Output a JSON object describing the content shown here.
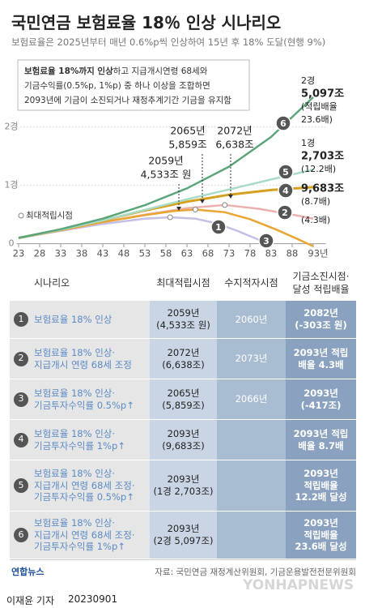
{
  "title": "국민연금 보험료율 18％ 인상 시나리오",
  "subtitle": "보험료율은 2025년부터 매년 0.6%p씩 인상하여 15년 후 18% 도달(현행 9%)",
  "chart_data": {
    "type": "line",
    "note": [
      [
        "보험료율 18%까지 인상",
        "하고 지급개시연령 68세와"
      ],
      [
        "기금수익률(0.5%p, 1%p) 중 하나 이상을 조합하면"
      ],
      [
        "2093년에 기금이 소진되거나 재정추계기간 기금을 유지함"
      ]
    ],
    "xlim": [
      2021,
      2096
    ],
    "xticks": [
      {
        "value": 2023,
        "label": "23"
      },
      {
        "value": 2028,
        "label": "28"
      },
      {
        "value": 2033,
        "label": "33"
      },
      {
        "value": 2038,
        "label": "38"
      },
      {
        "value": 2043,
        "label": "43"
      },
      {
        "value": 2048,
        "label": "48"
      },
      {
        "value": 2053,
        "label": "53"
      },
      {
        "value": 2058,
        "label": "58"
      },
      {
        "value": 2063,
        "label": "63"
      },
      {
        "value": 2068,
        "label": "68"
      },
      {
        "value": 2073,
        "label": "73"
      },
      {
        "value": 2078,
        "label": "78"
      },
      {
        "value": 2083,
        "label": "83"
      },
      {
        "value": 2088,
        "label": "88"
      },
      {
        "value": 2093,
        "label": "93년"
      }
    ],
    "ylim": [
      -600,
      28000
    ],
    "yticks": [
      0,
      {
        "value": 10000,
        "label": "1경"
      },
      {
        "value": 20000,
        "label": "2경"
      }
    ],
    "grid": true,
    "legend": "최대적립시점",
    "series": [
      {
        "name": "1",
        "color": "#c6bfe4",
        "peak_marker": true,
        "x": [
          2023,
          2033,
          2043,
          2053,
          2059,
          2065,
          2070,
          2075,
          2080,
          2082
        ],
        "values": [
          1000,
          2200,
          3400,
          4300,
          4533,
          4300,
          3500,
          2200,
          700,
          -303
        ]
      },
      {
        "name": "2",
        "color": "#ebb1ae",
        "peak_marker": true,
        "x": [
          2023,
          2033,
          2043,
          2053,
          2063,
          2072,
          2080,
          2088,
          2093
        ],
        "values": [
          1000,
          2300,
          3700,
          5000,
          6100,
          6638,
          6000,
          5000,
          4300
        ]
      },
      {
        "name": "3",
        "color": "#e9a634",
        "peak_marker": true,
        "x": [
          2023,
          2033,
          2043,
          2053,
          2060,
          2065,
          2072,
          2078,
          2084,
          2089,
          2093
        ],
        "values": [
          1000,
          2300,
          3700,
          4900,
          5600,
          5859,
          5400,
          4200,
          2500,
          900,
          -417
        ]
      },
      {
        "name": "4",
        "color": "#d6a11e",
        "x": [
          2023,
          2033,
          2043,
          2053,
          2063,
          2073,
          2083,
          2093
        ],
        "values": [
          1000,
          2400,
          4000,
          5700,
          7200,
          8400,
          9200,
          9683
        ]
      },
      {
        "name": "5",
        "color": "#a9dbc8",
        "x": [
          2023,
          2033,
          2043,
          2053,
          2063,
          2073,
          2083,
          2093
        ],
        "values": [
          1000,
          2400,
          4000,
          5800,
          7600,
          9300,
          11000,
          12703
        ]
      },
      {
        "name": "6",
        "color": "#5ba57b",
        "x": [
          2023,
          2033,
          2043,
          2053,
          2063,
          2073,
          2083,
          2093
        ],
        "values": [
          1000,
          2500,
          4300,
          6600,
          9500,
          13200,
          18300,
          25097
        ]
      }
    ],
    "annotations": [
      [
        "2059년",
        "4,533조 원"
      ],
      [
        "2065년",
        "5,859조"
      ],
      [
        "2072년",
        "6,638조"
      ]
    ],
    "end_labels": [
      [
        "2경",
        "5,097조",
        "(적립배율",
        "23.6배)"
      ],
      [
        "1경",
        "2,703조",
        "(12.2배)"
      ],
      [
        "9,683조",
        "(8.7배)"
      ],
      [
        "(4.3배)"
      ]
    ]
  },
  "table": {
    "header": [
      "시나리오",
      "최대적립시점",
      "수지적자시점",
      "기금소진시점·\n달성 적립배율"
    ],
    "rows": [
      {
        "num": "1",
        "scenario": "보험료율 18% 인상",
        "max": "2059년\n(4,533조 원)",
        "deficit": "2060년",
        "final": "2082년\n(-303조 원)"
      },
      {
        "num": "2",
        "scenario": "보험료율 18% 인상·\n지급개시 연령 68세 조정",
        "max": "2072년\n(6,638조)",
        "deficit": "2073년",
        "final": "2093년 적립\n배율 4.3배"
      },
      {
        "num": "3",
        "scenario": "보험료율 18% 인상·\n기금투자수익률 0.5%p↑",
        "max": "2065년\n(5,859조)",
        "deficit": "2066년",
        "final": "2093년\n(-417조)"
      },
      {
        "num": "4",
        "scenario": "보험료율 18% 인상·\n기금투자수익률 1%p↑",
        "max": "2093년\n(9,683조)",
        "deficit": null,
        "final": "2093년 적립\n배율 8.7배"
      },
      {
        "num": "5",
        "scenario": "보험료율 18% 인상·\n지급개시 연령 68세 조정·\n기금투자수익률 0.5%p↑",
        "max": "2093년\n(1경 2,703조)",
        "deficit": null,
        "final": "2093년\n적립배율\n12.2배 달성"
      },
      {
        "num": "6",
        "scenario": "보험료율 18% 인상·\n지급개시 연령 68세 조정·\n기금투자수익률 1%p↑",
        "max": "2093년\n(2경 5,097조)",
        "deficit": null,
        "final": "2093년\n적립배율\n23.6배 달성"
      }
    ]
  },
  "footer": {
    "source": "자료: 국민연금 재정계산위원회, 기금운용발전전문위원회",
    "logo": "연합뉴스",
    "watermark": "YONHAPNEWS",
    "reporter": "이재윤 기자",
    "date": "20230901"
  }
}
